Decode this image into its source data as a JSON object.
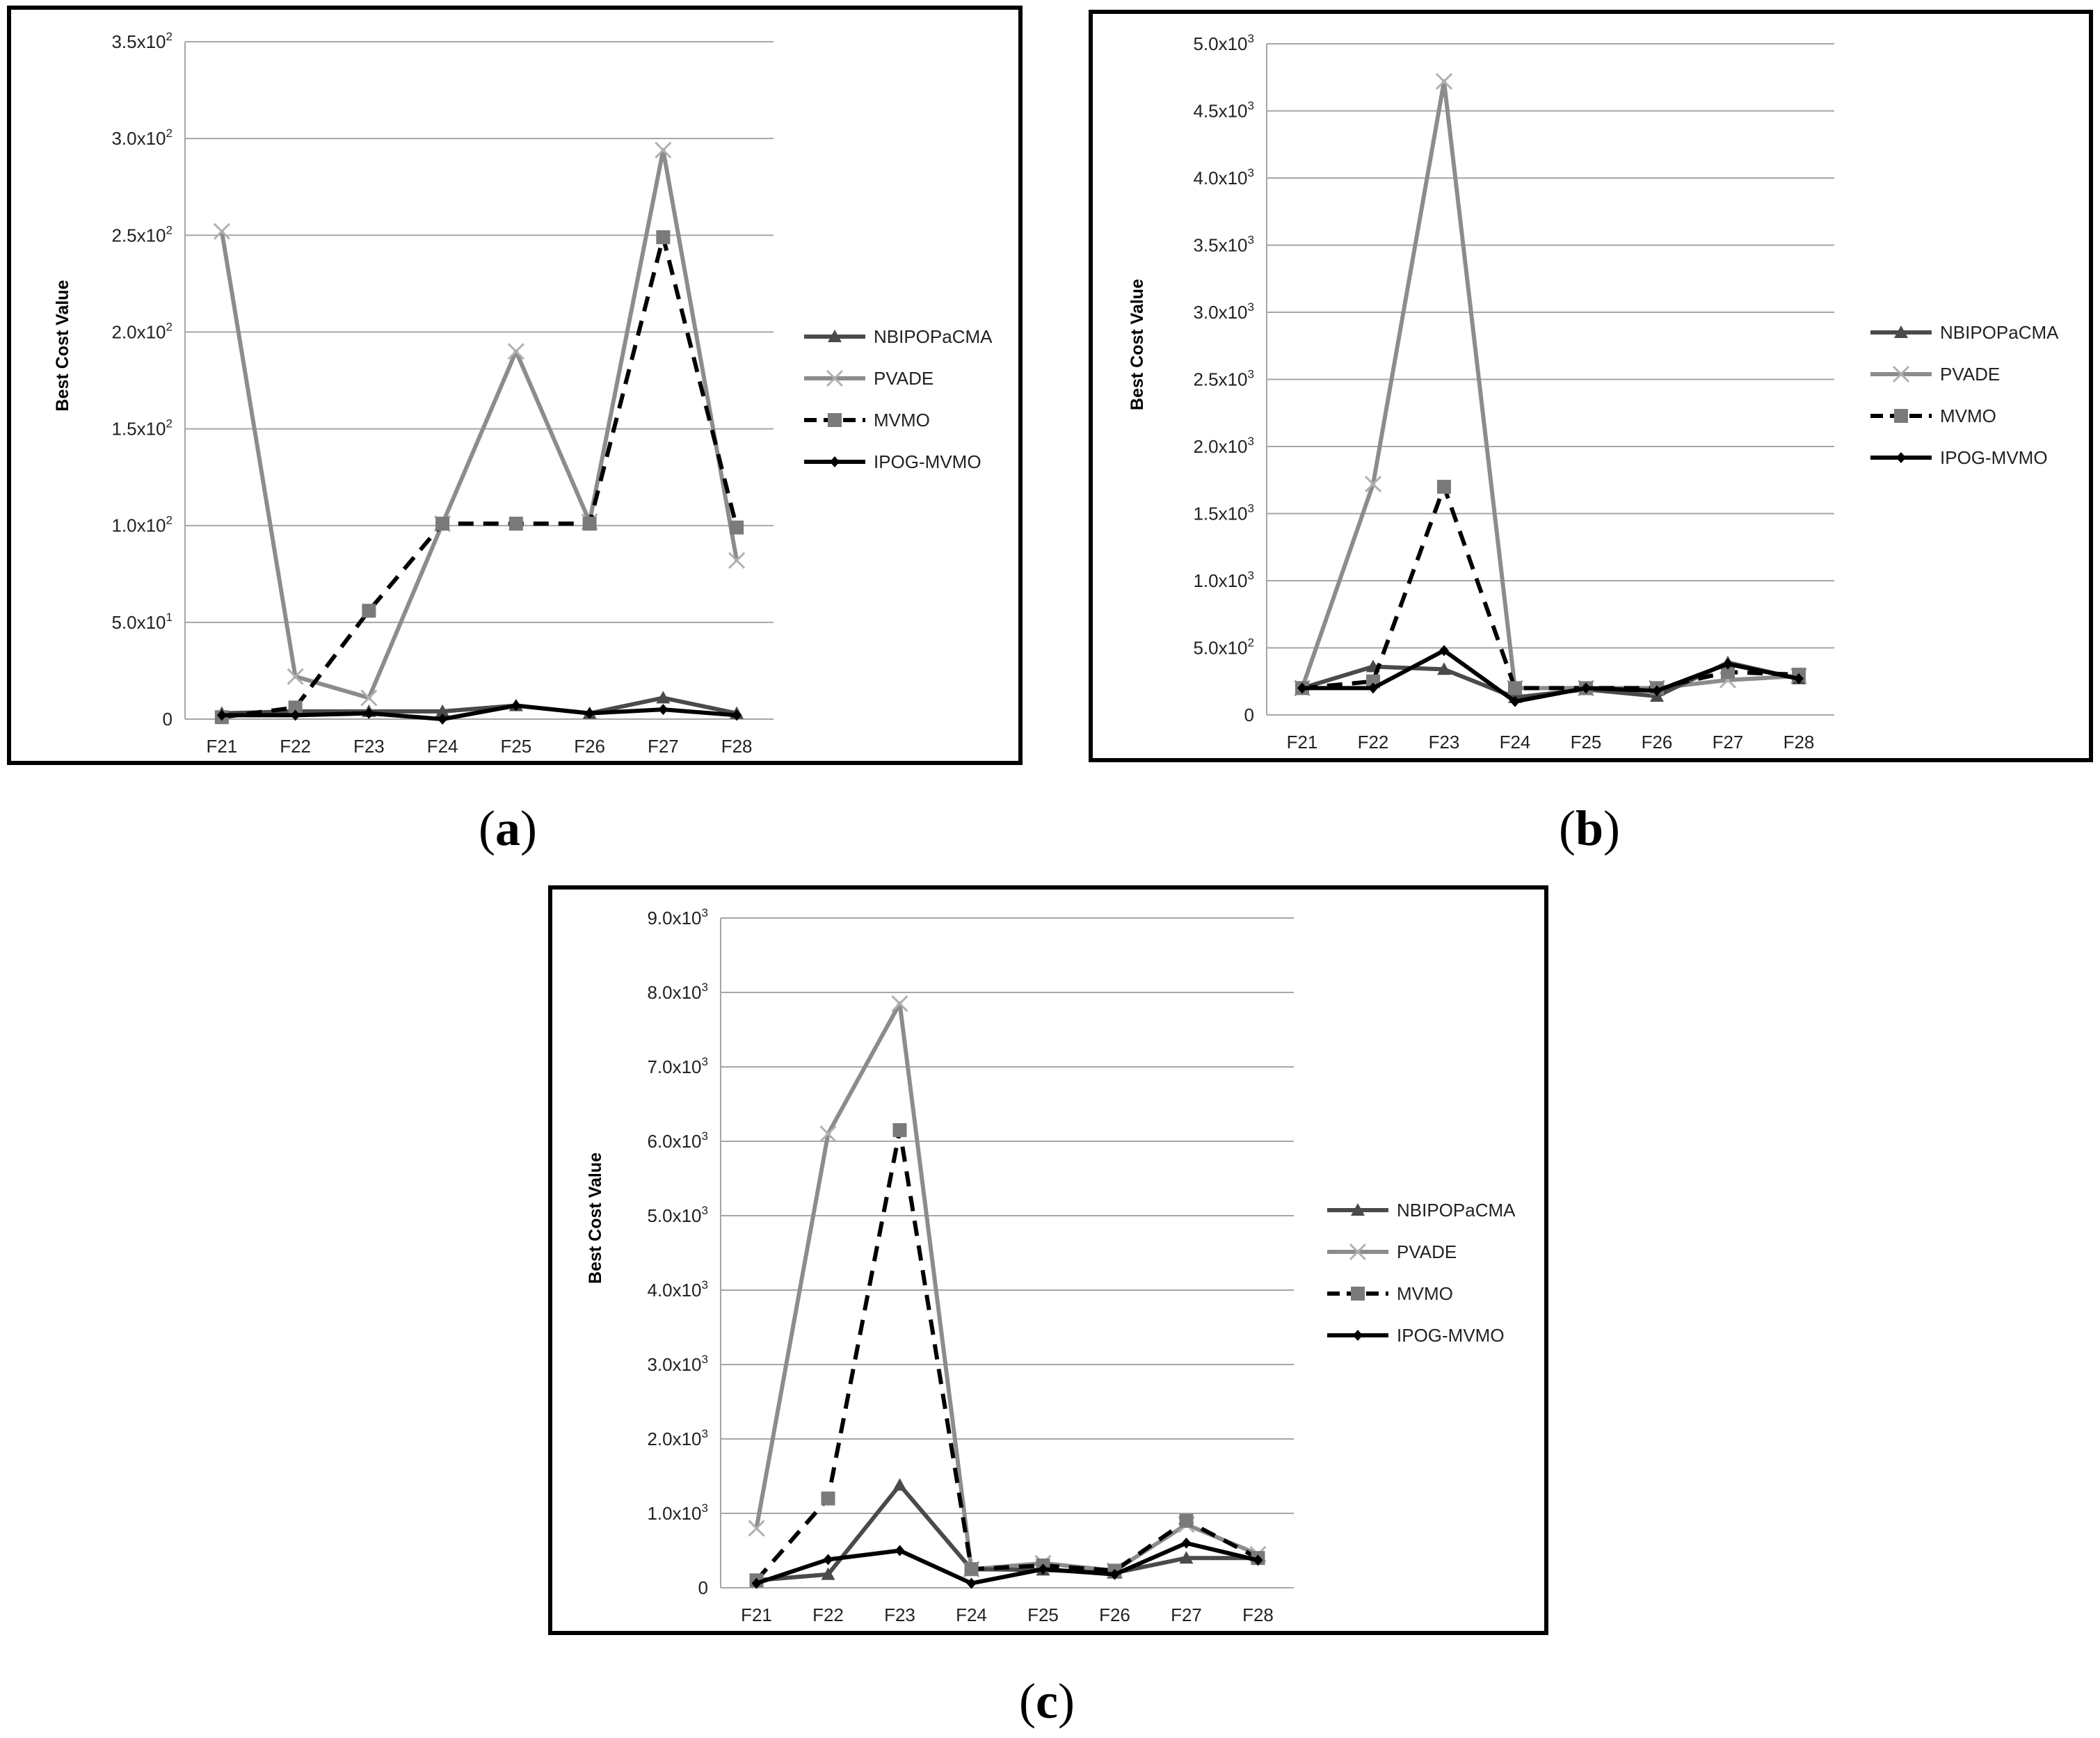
{
  "colors": {
    "NBIPOPaCMA": "#4a4a4a",
    "PVADE": "#8c8c8c",
    "MVMO": "#000000",
    "IPOG-MVMO": "#000000",
    "MVMO_marker": "#7a7a7a",
    "grid": "#a6a6a6",
    "frame": "#000000"
  },
  "chart_data": [
    {
      "id": "a",
      "caption_open": "(",
      "caption_letter": "a",
      "caption_close": ")",
      "type": "line",
      "ylabel": "Best Cost Value",
      "categories": [
        "F21",
        "F22",
        "F23",
        "F24",
        "F25",
        "F26",
        "F27",
        "F28"
      ],
      "ylim": [
        0,
        350
      ],
      "ytick_values": [
        0,
        50,
        100,
        150,
        200,
        250,
        300,
        350
      ],
      "ytick_labels": [
        {
          "base": "0",
          "exp": ""
        },
        {
          "base": "5.0x10",
          "exp": "1"
        },
        {
          "base": "1.0x10",
          "exp": "2"
        },
        {
          "base": "1.5x10",
          "exp": "2"
        },
        {
          "base": "2.0x10",
          "exp": "2"
        },
        {
          "base": "2.5x10",
          "exp": "2"
        },
        {
          "base": "3.0x10",
          "exp": "2"
        },
        {
          "base": "3.5x10",
          "exp": "2"
        }
      ],
      "legend": [
        "NBIPOPaCMA",
        "PVADE",
        "MVMO",
        "IPOG-MVMO"
      ],
      "series": [
        {
          "name": "NBIPOPaCMA",
          "values": [
            3,
            4,
            4,
            4,
            7,
            3,
            11,
            3
          ]
        },
        {
          "name": "PVADE",
          "values": [
            252,
            22,
            11,
            101,
            190,
            102,
            294,
            82
          ]
        },
        {
          "name": "MVMO",
          "values": [
            1,
            6,
            56,
            101,
            101,
            101,
            249,
            99
          ]
        },
        {
          "name": "IPOG-MVMO",
          "values": [
            2,
            2,
            3,
            0,
            7,
            3,
            5,
            2
          ]
        }
      ]
    },
    {
      "id": "b",
      "caption_open": "(",
      "caption_letter": "b",
      "caption_close": ")",
      "type": "line",
      "ylabel": "Best Cost Value",
      "categories": [
        "F21",
        "F22",
        "F23",
        "F24",
        "F25",
        "F26",
        "F27",
        "F28"
      ],
      "ylim": [
        0,
        5000
      ],
      "ytick_values": [
        0,
        500,
        1000,
        1500,
        2000,
        2500,
        3000,
        3500,
        4000,
        4500,
        5000
      ],
      "ytick_labels": [
        {
          "base": "0",
          "exp": ""
        },
        {
          "base": "5.0x10",
          "exp": "2"
        },
        {
          "base": "1.0x10",
          "exp": "3"
        },
        {
          "base": "1.5x10",
          "exp": "3"
        },
        {
          "base": "2.0x10",
          "exp": "3"
        },
        {
          "base": "2.5x10",
          "exp": "3"
        },
        {
          "base": "3.0x10",
          "exp": "3"
        },
        {
          "base": "3.5x10",
          "exp": "3"
        },
        {
          "base": "4.0x10",
          "exp": "3"
        },
        {
          "base": "4.5x10",
          "exp": "3"
        },
        {
          "base": "5.0x10",
          "exp": "3"
        }
      ],
      "legend": [
        "NBIPOPaCMA",
        "PVADE",
        "MVMO",
        "IPOG-MVMO"
      ],
      "series": [
        {
          "name": "NBIPOPaCMA",
          "values": [
            200,
            360,
            340,
            130,
            190,
            140,
            390,
            270
          ]
        },
        {
          "name": "PVADE",
          "values": [
            200,
            1720,
            4720,
            200,
            200,
            200,
            260,
            290
          ]
        },
        {
          "name": "MVMO",
          "values": [
            200,
            250,
            1700,
            200,
            200,
            200,
            320,
            300
          ]
        },
        {
          "name": "IPOG-MVMO",
          "values": [
            200,
            200,
            480,
            100,
            200,
            180,
            380,
            270
          ]
        }
      ]
    },
    {
      "id": "c",
      "caption_open": "(",
      "caption_letter": "c",
      "caption_close": ")",
      "type": "line",
      "ylabel": "Best Cost Value",
      "categories": [
        "F21",
        "F22",
        "F23",
        "F24",
        "F25",
        "F26",
        "F27",
        "F28"
      ],
      "ylim": [
        0,
        9000
      ],
      "ytick_values": [
        0,
        1000,
        2000,
        3000,
        4000,
        5000,
        6000,
        7000,
        8000,
        9000
      ],
      "ytick_labels": [
        {
          "base": "0",
          "exp": ""
        },
        {
          "base": "1.0x10",
          "exp": "3"
        },
        {
          "base": "2.0x10",
          "exp": "3"
        },
        {
          "base": "3.0x10",
          "exp": "3"
        },
        {
          "base": "4.0x10",
          "exp": "3"
        },
        {
          "base": "5.0x10",
          "exp": "3"
        },
        {
          "base": "6.0x10",
          "exp": "3"
        },
        {
          "base": "7.0x10",
          "exp": "3"
        },
        {
          "base": "8.0x10",
          "exp": "3"
        },
        {
          "base": "9.0x10",
          "exp": "3"
        }
      ],
      "legend": [
        "NBIPOPaCMA",
        "PVADE",
        "MVMO",
        "IPOG-MVMO"
      ],
      "series": [
        {
          "name": "NBIPOPaCMA",
          "values": [
            100,
            180,
            1380,
            250,
            240,
            200,
            400,
            400
          ]
        },
        {
          "name": "PVADE",
          "values": [
            800,
            6100,
            7850,
            250,
            330,
            230,
            850,
            450
          ]
        },
        {
          "name": "MVMO",
          "values": [
            100,
            1200,
            6150,
            250,
            300,
            230,
            900,
            400
          ]
        },
        {
          "name": "IPOG-MVMO",
          "values": [
            60,
            380,
            500,
            60,
            250,
            180,
            600,
            370
          ]
        }
      ]
    }
  ]
}
